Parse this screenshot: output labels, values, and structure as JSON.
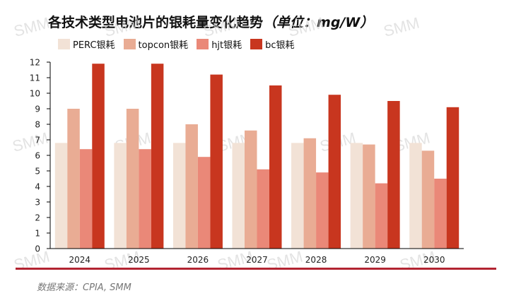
{
  "chart_data": {
    "type": "bar",
    "title": "各技术类型电池片的银耗量变化趋势",
    "title_unit": "（单位：mg/W）",
    "xlabel": "",
    "ylabel": "",
    "ylim": [
      0,
      12
    ],
    "yticks": [
      0,
      1,
      2,
      3,
      4,
      5,
      6,
      7,
      8,
      9,
      10,
      11,
      12
    ],
    "grid": false,
    "legend_position": "top-left",
    "categories": [
      "2024",
      "2025",
      "2026",
      "2027",
      "2028",
      "2029",
      "2030"
    ],
    "series": [
      {
        "name": "PERC银耗",
        "color": "#f2e2d6",
        "values": [
          6.8,
          6.8,
          6.8,
          6.8,
          6.8,
          6.8,
          6.8
        ]
      },
      {
        "name": "topcon银耗",
        "color": "#e9ac94",
        "values": [
          9.0,
          9.0,
          8.0,
          7.6,
          7.1,
          6.7,
          6.3
        ]
      },
      {
        "name": "hjt银耗",
        "color": "#ea8878",
        "values": [
          6.4,
          6.4,
          5.9,
          5.1,
          4.9,
          4.2,
          4.5
        ]
      },
      {
        "name": "bc银耗",
        "color": "#c8361f",
        "values": [
          11.9,
          11.9,
          11.2,
          10.5,
          9.9,
          9.5,
          9.1
        ]
      }
    ]
  },
  "watermark": "SMM",
  "footer": {
    "source": "数据来源：CPIA, SMM",
    "line_color": "#b22431"
  }
}
